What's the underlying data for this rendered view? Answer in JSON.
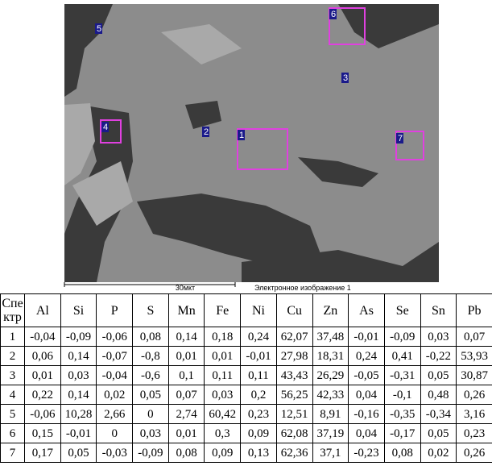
{
  "image": {
    "markers": [
      {
        "label": "1"
      },
      {
        "label": "2"
      },
      {
        "label": "3"
      },
      {
        "label": "4"
      },
      {
        "label": "5"
      },
      {
        "label": "6"
      },
      {
        "label": "7"
      }
    ],
    "scale_label": "30мкт",
    "caption": "Электронное изображение 1"
  },
  "table": {
    "header": [
      "Спе\nктр",
      "Al",
      "Si",
      "P",
      "S",
      "Mn",
      "Fe",
      "Ni",
      "Cu",
      "Zn",
      "As",
      "Se",
      "Sn",
      "Pb"
    ],
    "rows": [
      [
        "1",
        "-0,04",
        "-0,09",
        "-0,06",
        "0,08",
        "0,14",
        "0,18",
        "0,24",
        "62,07",
        "37,48",
        "-0,01",
        "-0,09",
        "0,03",
        "0,07"
      ],
      [
        "2",
        "0,06",
        "0,14",
        "-0,07",
        "-0,8",
        "0,01",
        "0,01",
        "-0,01",
        "27,98",
        "18,31",
        "0,24",
        "0,41",
        "-0,22",
        "53,93"
      ],
      [
        "3",
        "0,01",
        "0,03",
        "-0,04",
        "-0,6",
        "0,1",
        "0,11",
        "0,11",
        "43,43",
        "26,29",
        "-0,05",
        "-0,31",
        "0,05",
        "30,87"
      ],
      [
        "4",
        "0,22",
        "0,14",
        "0,02",
        "0,05",
        "0,07",
        "0,03",
        "0,2",
        "56,25",
        "42,33",
        "0,04",
        "-0,1",
        "0,48",
        "0,26"
      ],
      [
        "5",
        "-0,06",
        "10,28",
        "2,66",
        "0",
        "2,74",
        "60,42",
        "0,23",
        "12,51",
        "8,91",
        "-0,16",
        "-0,35",
        "-0,34",
        "3,16"
      ],
      [
        "6",
        "0,15",
        "-0,01",
        "0",
        "0,03",
        "0,01",
        "0,3",
        "0,09",
        "62,08",
        "37,19",
        "0,04",
        "-0,17",
        "0,05",
        "0,23"
      ],
      [
        "7",
        "0,17",
        "0,05",
        "-0,03",
        "-0,09",
        "0,08",
        "0,09",
        "0,13",
        "62,36",
        "37,1",
        "-0,23",
        "0,08",
        "0,02",
        "0,26"
      ]
    ]
  }
}
